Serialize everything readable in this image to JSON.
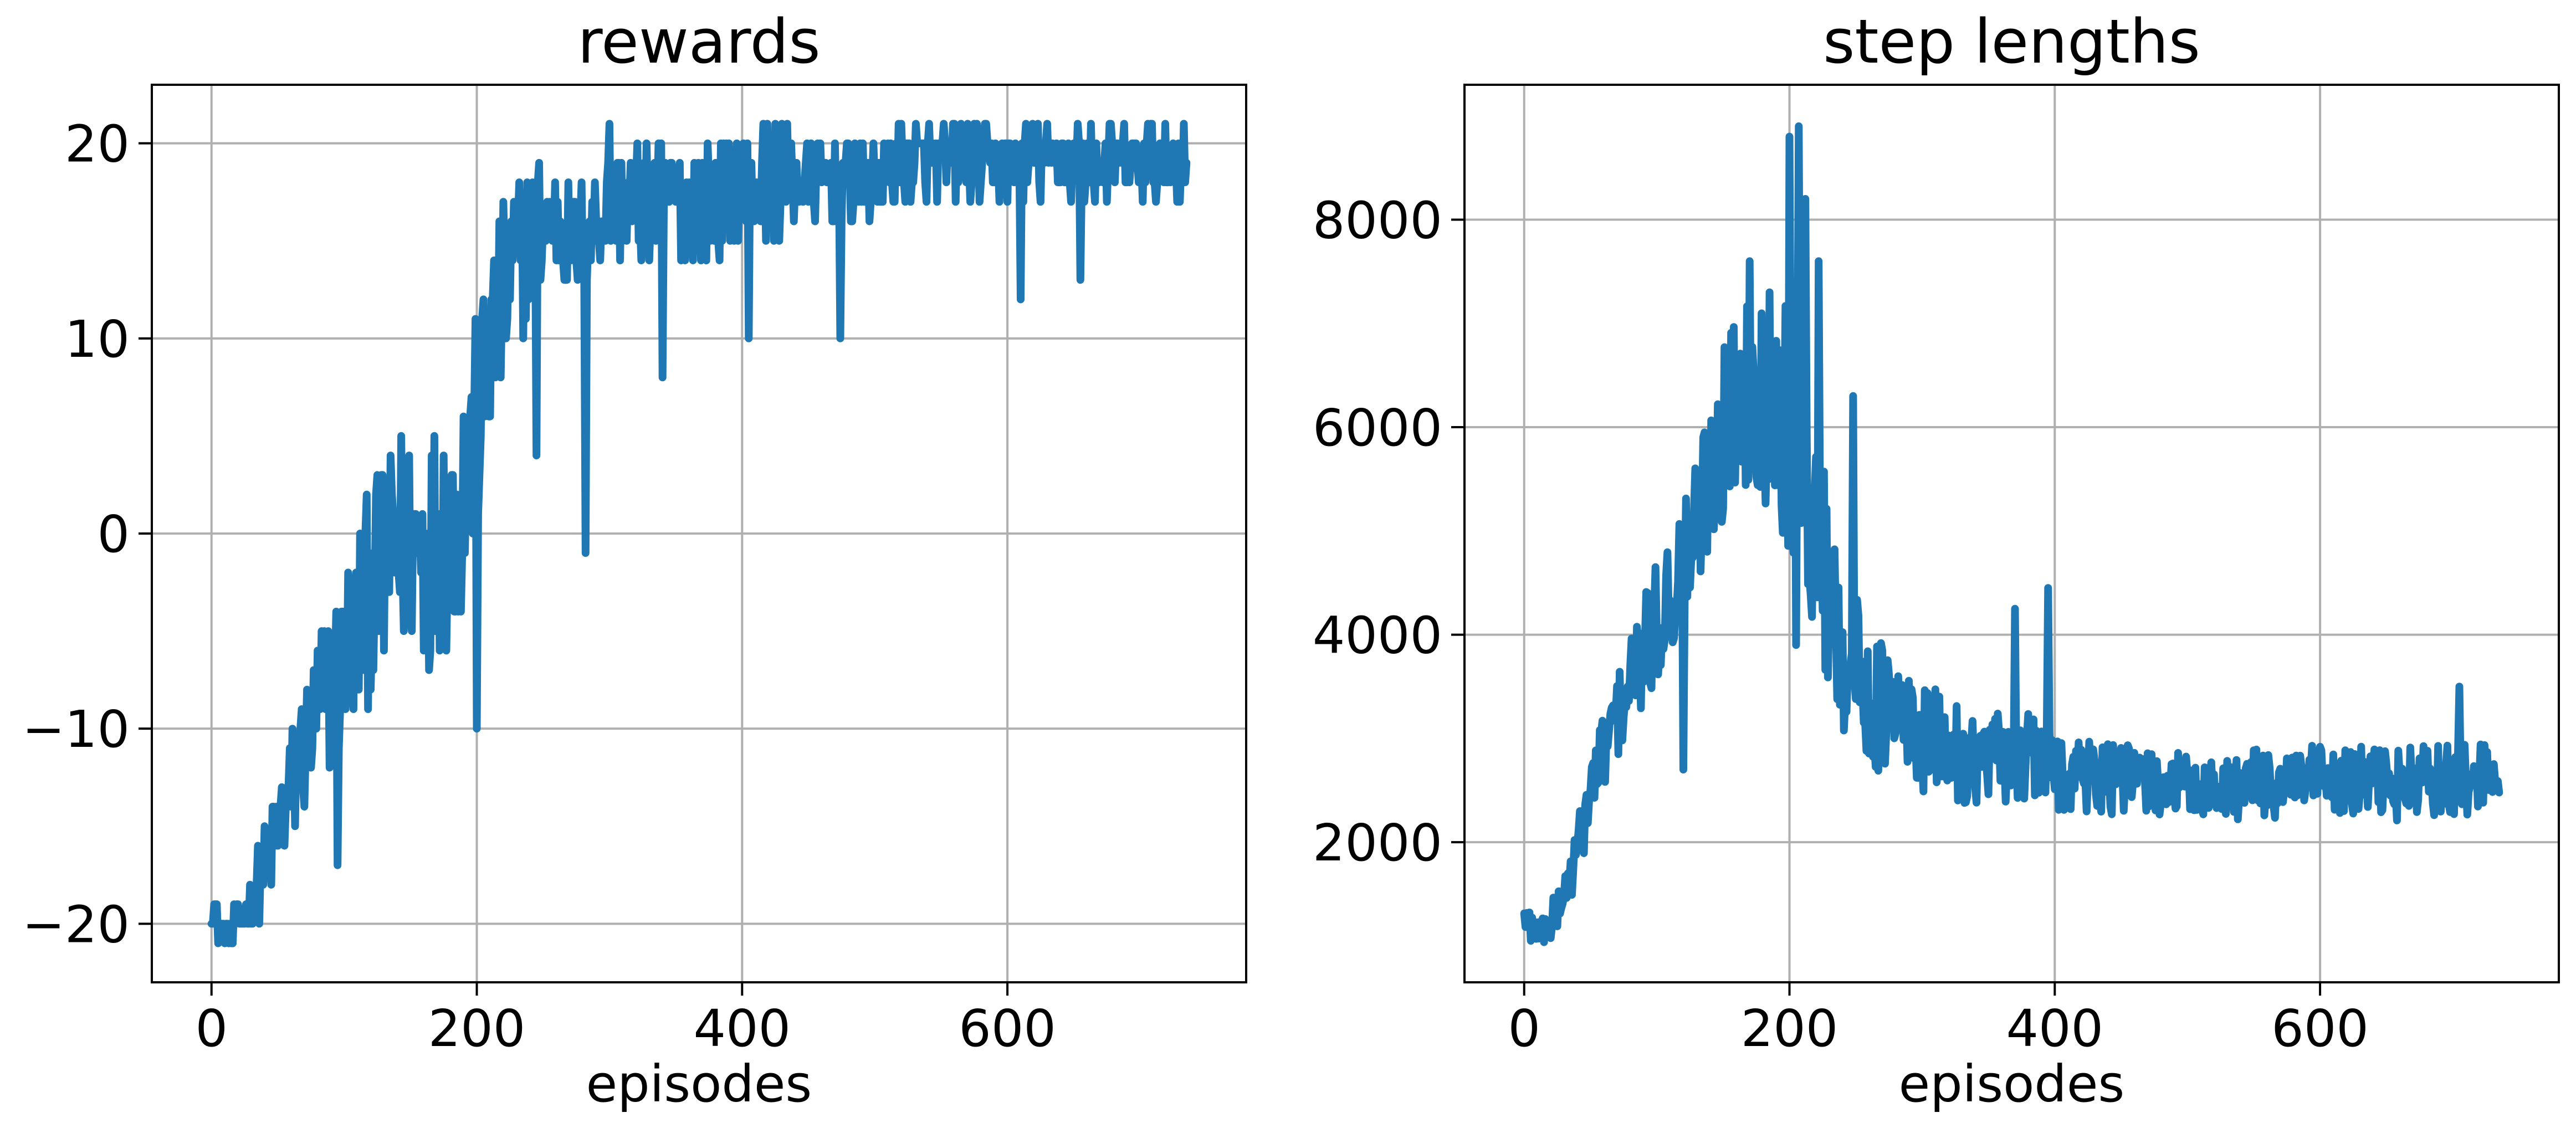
{
  "chart_data": [
    {
      "type": "line",
      "title": "rewards",
      "xlabel": "episodes",
      "ylabel": "",
      "xlim": [
        -45,
        780
      ],
      "ylim": [
        -23,
        23
      ],
      "xticks": [
        0,
        200,
        400,
        600
      ],
      "yticks": [
        -20,
        -10,
        0,
        10,
        20
      ],
      "xtick_labels": [
        "0",
        "200",
        "400",
        "600"
      ],
      "ytick_labels": [
        "−20",
        "−10",
        "0",
        "10",
        "20"
      ],
      "grid": true,
      "color": "#1f77b4",
      "series": [
        {
          "x": [
            0,
            10,
            20,
            30,
            40,
            50,
            60,
            70,
            80,
            90,
            100,
            110,
            120,
            130,
            140,
            150,
            160,
            170,
            180,
            190,
            200,
            210,
            220,
            230,
            240,
            250,
            260,
            270,
            280,
            290,
            300,
            320,
            340,
            360,
            380,
            400,
            420,
            440,
            460,
            480,
            500,
            520,
            540,
            560,
            580,
            600,
            620,
            640,
            660,
            680,
            700,
            720,
            735
          ],
          "y": [
            -19,
            -21,
            -20,
            -19,
            -17,
            -15,
            -13,
            -11,
            -9,
            -8,
            -6,
            -5,
            -3,
            -2,
            -1,
            0,
            -1,
            0,
            0,
            2,
            5,
            9,
            12,
            14,
            15,
            16,
            16,
            15,
            15,
            16,
            17,
            17,
            17,
            17,
            17,
            18,
            18,
            18,
            18,
            18,
            18,
            19,
            19,
            19,
            19,
            19,
            19,
            19,
            19,
            19,
            19,
            19,
            19
          ],
          "amplitude": [
            1,
            1,
            1,
            1.5,
            2,
            3,
            3,
            3.5,
            4,
            4.5,
            5,
            5,
            5.5,
            6,
            6,
            6,
            6,
            6.5,
            6.5,
            6.5,
            6,
            5.5,
            5,
            4.5,
            4,
            3.5,
            3,
            3,
            3,
            3,
            3,
            3,
            3,
            3,
            3,
            3,
            3,
            2.5,
            2.5,
            2.5,
            2,
            2,
            2,
            2,
            2,
            2,
            2,
            2,
            2,
            2,
            2,
            2,
            2
          ],
          "max": 21,
          "min": -21,
          "spikes": [
            {
              "x": 282,
              "y": -1
            },
            {
              "x": 200,
              "y": -10
            },
            {
              "x": 245,
              "y": 4
            },
            {
              "x": 340,
              "y": 8
            },
            {
              "x": 405,
              "y": 10
            },
            {
              "x": 474,
              "y": 10
            },
            {
              "x": 610,
              "y": 12
            },
            {
              "x": 655,
              "y": 13
            },
            {
              "x": 95,
              "y": -17
            },
            {
              "x": 300,
              "y": 21
            },
            {
              "x": 430,
              "y": 21
            },
            {
              "x": 560,
              "y": 21
            }
          ]
        }
      ]
    },
    {
      "type": "line",
      "title": "step lengths",
      "xlabel": "episodes",
      "ylabel": "",
      "xlim": [
        -45,
        780
      ],
      "ylim": [
        650,
        9300
      ],
      "xticks": [
        0,
        200,
        400,
        600
      ],
      "yticks": [
        2000,
        4000,
        6000,
        8000
      ],
      "xtick_labels": [
        "0",
        "200",
        "400",
        "600"
      ],
      "ytick_labels": [
        "2000",
        "4000",
        "6000",
        "8000"
      ],
      "grid": true,
      "color": "#1f77b4",
      "series": [
        {
          "x": [
            0,
            10,
            20,
            30,
            40,
            50,
            60,
            70,
            80,
            90,
            100,
            110,
            120,
            130,
            140,
            150,
            160,
            170,
            180,
            190,
            200,
            210,
            220,
            230,
            240,
            250,
            260,
            280,
            300,
            320,
            340,
            360,
            380,
            400,
            420,
            440,
            460,
            480,
            500,
            520,
            540,
            560,
            580,
            600,
            620,
            640,
            660,
            680,
            700,
            720,
            735
          ],
          "y": [
            1300,
            1150,
            1200,
            1500,
            1900,
            2500,
            2900,
            3200,
            3500,
            3800,
            4100,
            4400,
            4700,
            5000,
            5600,
            6000,
            6200,
            6400,
            6300,
            6200,
            6000,
            5500,
            5000,
            4400,
            3900,
            3600,
            3400,
            3200,
            3000,
            2900,
            2800,
            2800,
            2800,
            2700,
            2650,
            2600,
            2600,
            2550,
            2550,
            2500,
            2550,
            2550,
            2550,
            2600,
            2550,
            2600,
            2550,
            2600,
            2600,
            2600,
            2650
          ],
          "amplitude": [
            150,
            150,
            200,
            250,
            300,
            350,
            400,
            450,
            500,
            550,
            600,
            650,
            700,
            750,
            800,
            900,
            900,
            950,
            1000,
            1100,
            1200,
            1200,
            1100,
            1000,
            900,
            800,
            700,
            600,
            550,
            500,
            450,
            450,
            450,
            400,
            400,
            350,
            350,
            350,
            300,
            300,
            350,
            350,
            350,
            350,
            350,
            350,
            350,
            350,
            350,
            350,
            300
          ],
          "max": 9000,
          "min": 1000,
          "spikes": [
            {
              "x": 200,
              "y": 8800
            },
            {
              "x": 207,
              "y": 8900
            },
            {
              "x": 212,
              "y": 8200
            },
            {
              "x": 222,
              "y": 7600
            },
            {
              "x": 185,
              "y": 7300
            },
            {
              "x": 170,
              "y": 7600
            },
            {
              "x": 120,
              "y": 2700
            },
            {
              "x": 205,
              "y": 3900
            },
            {
              "x": 248,
              "y": 6300
            },
            {
              "x": 395,
              "y": 4450
            },
            {
              "x": 370,
              "y": 4250
            },
            {
              "x": 705,
              "y": 3500
            },
            {
              "x": 5,
              "y": 1050
            }
          ]
        }
      ]
    }
  ]
}
